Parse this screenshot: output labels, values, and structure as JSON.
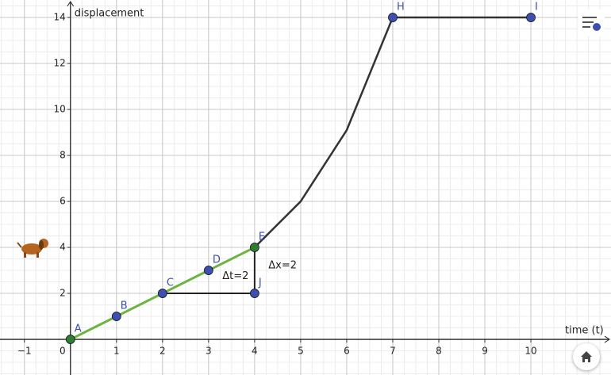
{
  "chart_data": {
    "type": "line",
    "x_label": "time (t)",
    "y_label": "displacement",
    "xlim": [
      -1.53,
      11.74
    ],
    "ylim": [
      -1.55,
      14.76
    ],
    "xticks": [
      {
        "value": -1,
        "label": "−1"
      },
      0,
      1,
      2,
      3,
      4,
      5,
      6,
      7,
      8,
      9,
      10
    ],
    "yticks": [
      2,
      4,
      6,
      8,
      10,
      12,
      14
    ],
    "grid": true,
    "minor_grid_divisions": 4,
    "curve": {
      "color": "#333333",
      "x": [
        4,
        5,
        6,
        7,
        10
      ],
      "values": [
        4,
        6,
        9.1,
        14,
        14
      ]
    },
    "secant": {
      "color": "#6db33f",
      "x": [
        0,
        4
      ],
      "values": [
        0,
        4
      ]
    },
    "triangle": {
      "color": "#222222",
      "x": [
        2,
        4,
        4
      ],
      "values": [
        2,
        2,
        4
      ]
    },
    "points": [
      {
        "label": "A",
        "x": 0,
        "y": 0,
        "color": "#2e7d32"
      },
      {
        "label": "B",
        "x": 1,
        "y": 1,
        "color": "#3d4fb0"
      },
      {
        "label": "C",
        "x": 2,
        "y": 2,
        "color": "#3d4fb0"
      },
      {
        "label": "D",
        "x": 3,
        "y": 3,
        "color": "#3d4fb0"
      },
      {
        "label": "E",
        "x": 4,
        "y": 4,
        "color": "#2e7d32"
      },
      {
        "label": "H",
        "x": 7,
        "y": 14,
        "color": "#3d4fb0"
      },
      {
        "label": "I",
        "x": 10,
        "y": 14,
        "color": "#3d4fb0"
      },
      {
        "label": "J",
        "x": 4,
        "y": 2,
        "color": "#3d4fb0"
      }
    ],
    "annotations": [
      "Δt=2",
      "Δx=2"
    ]
  }
}
